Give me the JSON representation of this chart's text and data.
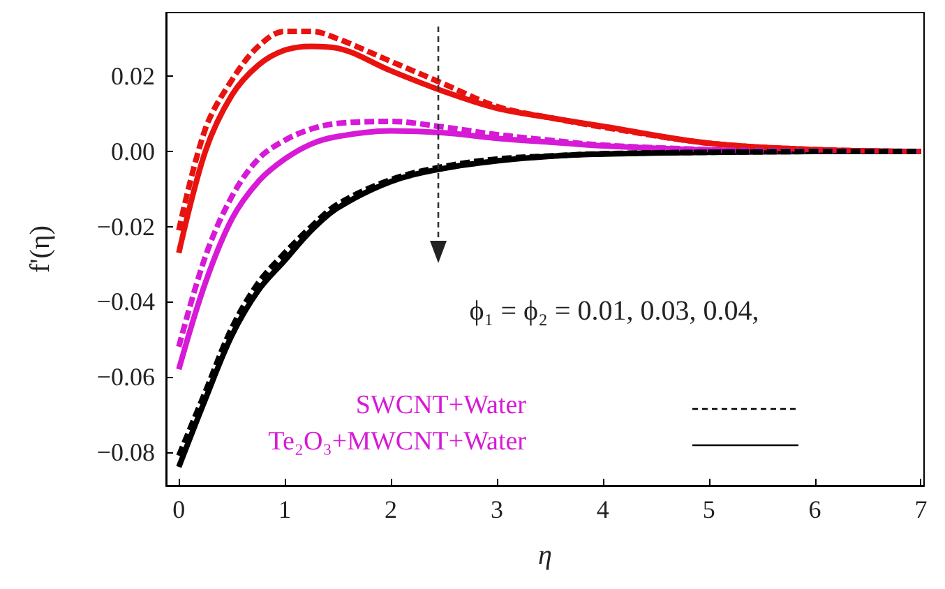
{
  "chart_data": {
    "type": "line",
    "xlabel": "η",
    "ylabel": "f'(η)",
    "x": [
      0,
      0.25,
      0.5,
      0.75,
      1,
      1.25,
      1.5,
      2,
      2.5,
      3,
      3.5,
      4,
      5,
      6,
      7
    ],
    "series": [
      {
        "color": "#e8120f",
        "line_style": "solid",
        "values": [
          -0.027,
          0.0,
          0.015,
          0.023,
          0.027,
          0.028,
          0.0275,
          0.0215,
          0.016,
          0.0115,
          0.009,
          0.0067,
          0.0022,
          0.0005,
          0
        ]
      },
      {
        "color": "#d61ad6",
        "line_style": "solid",
        "values": [
          -0.058,
          -0.035,
          -0.018,
          -0.008,
          -0.002,
          0.002,
          0.004,
          0.0055,
          0.005,
          0.0035,
          0.0025,
          0.0015,
          0.0004,
          0.0001,
          0
        ]
      },
      {
        "color": "#000000",
        "line_style": "solid",
        "values": [
          -0.084,
          -0.066,
          -0.049,
          -0.037,
          -0.029,
          -0.021,
          -0.015,
          -0.008,
          -0.0045,
          -0.0025,
          -0.0013,
          -0.0007,
          -0.0002,
          0,
          0
        ]
      },
      {
        "color": "#e8120f",
        "line_style": "dashed",
        "values": [
          -0.021,
          0.006,
          0.019,
          0.028,
          0.032,
          0.032,
          0.03,
          0.024,
          0.018,
          0.012,
          0.009,
          0.0065,
          0.0022,
          0.0005,
          0
        ]
      },
      {
        "color": "#d61ad6",
        "line_style": "dashed",
        "values": [
          -0.052,
          -0.028,
          -0.012,
          -0.002,
          0.003,
          0.006,
          0.0075,
          0.008,
          0.0065,
          0.0045,
          0.003,
          0.0017,
          0.0005,
          0.0001,
          0
        ]
      },
      {
        "color": "#000000",
        "line_style": "dashed",
        "values": [
          -0.081,
          -0.064,
          -0.047,
          -0.035,
          -0.027,
          -0.02,
          -0.014,
          -0.0075,
          -0.004,
          -0.002,
          -0.0012,
          -0.0006,
          -0.0002,
          0,
          0
        ]
      }
    ],
    "xlim": [
      -0.12,
      7.03
    ],
    "xticks": [
      0,
      1,
      2,
      3,
      4,
      5,
      6,
      7
    ],
    "ylim": [
      -0.089,
      0.037
    ],
    "yticks": [
      -0.08,
      -0.06,
      -0.04,
      -0.02,
      {
        "value": 0,
        "label": "0.00"
      },
      0.02
    ],
    "annotations": [
      "ϕ₁ = ϕ₂ = 0.01, 0.03, 0.04,",
      "SWCNT+Water",
      "Te₂O₃+MWCNT+Water"
    ],
    "marker": "none",
    "grid": false
  }
}
